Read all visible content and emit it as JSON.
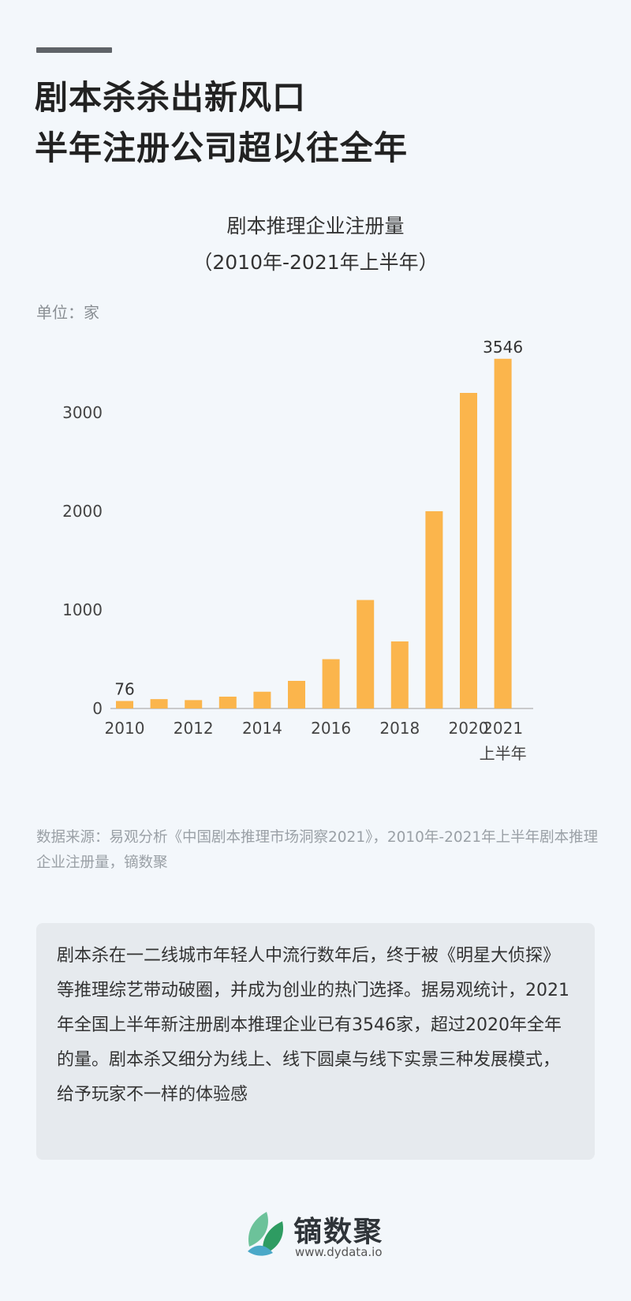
{
  "header": {
    "headline_line1": "剧本杀杀出新风口",
    "headline_line2": "半年注册公司超以往全年"
  },
  "chart_data": {
    "type": "bar",
    "title": "剧本推理企业注册量",
    "subtitle": "（2010年-2021年上半年）",
    "unit_label": "单位：家",
    "xlabel": "",
    "ylabel": "",
    "categories": [
      "2010",
      "2011",
      "2012",
      "2013",
      "2014",
      "2015",
      "2016",
      "2017",
      "2018",
      "2019",
      "2020",
      "2021上半年"
    ],
    "x_tick_labels": [
      "2010",
      "2012",
      "2014",
      "2016",
      "2018",
      "2020",
      "2021"
    ],
    "x_tick_sublabel": "上半年",
    "values": [
      76,
      95,
      85,
      120,
      170,
      280,
      500,
      1100,
      680,
      2000,
      3200,
      3546
    ],
    "data_labels": [
      {
        "index": 0,
        "text": "76"
      },
      {
        "index": 11,
        "text": "3546"
      }
    ],
    "y_ticks": [
      0,
      1000,
      2000,
      3000
    ],
    "ylim": [
      0,
      3600
    ],
    "bar_color": "#fbb54c",
    "grid": false,
    "legend": "none"
  },
  "source_text": "数据来源：易观分析《中国剧本推理市场洞察2021》，2010年-2021年上半年剧本推理企业注册量，镝数聚",
  "note_text": "剧本杀在一二线城市年轻人中流行数年后，终于被《明星大侦探》等推理综艺带动破圈，并成为创业的热门选择。据易观统计，2021年全国上半年新注册剧本推理企业已有3546家，超过2020年全年的量。剧本杀又细分为线上、线下圆桌与线下实景三种发展模式，给予玩家不一样的体验感",
  "brand": {
    "name": "镝数聚",
    "url": "www.dydata.io",
    "logo_icon": "leaf-icon",
    "logo_colors": [
      "#2e9c62",
      "#6cc29a",
      "#4aa8c8"
    ]
  }
}
